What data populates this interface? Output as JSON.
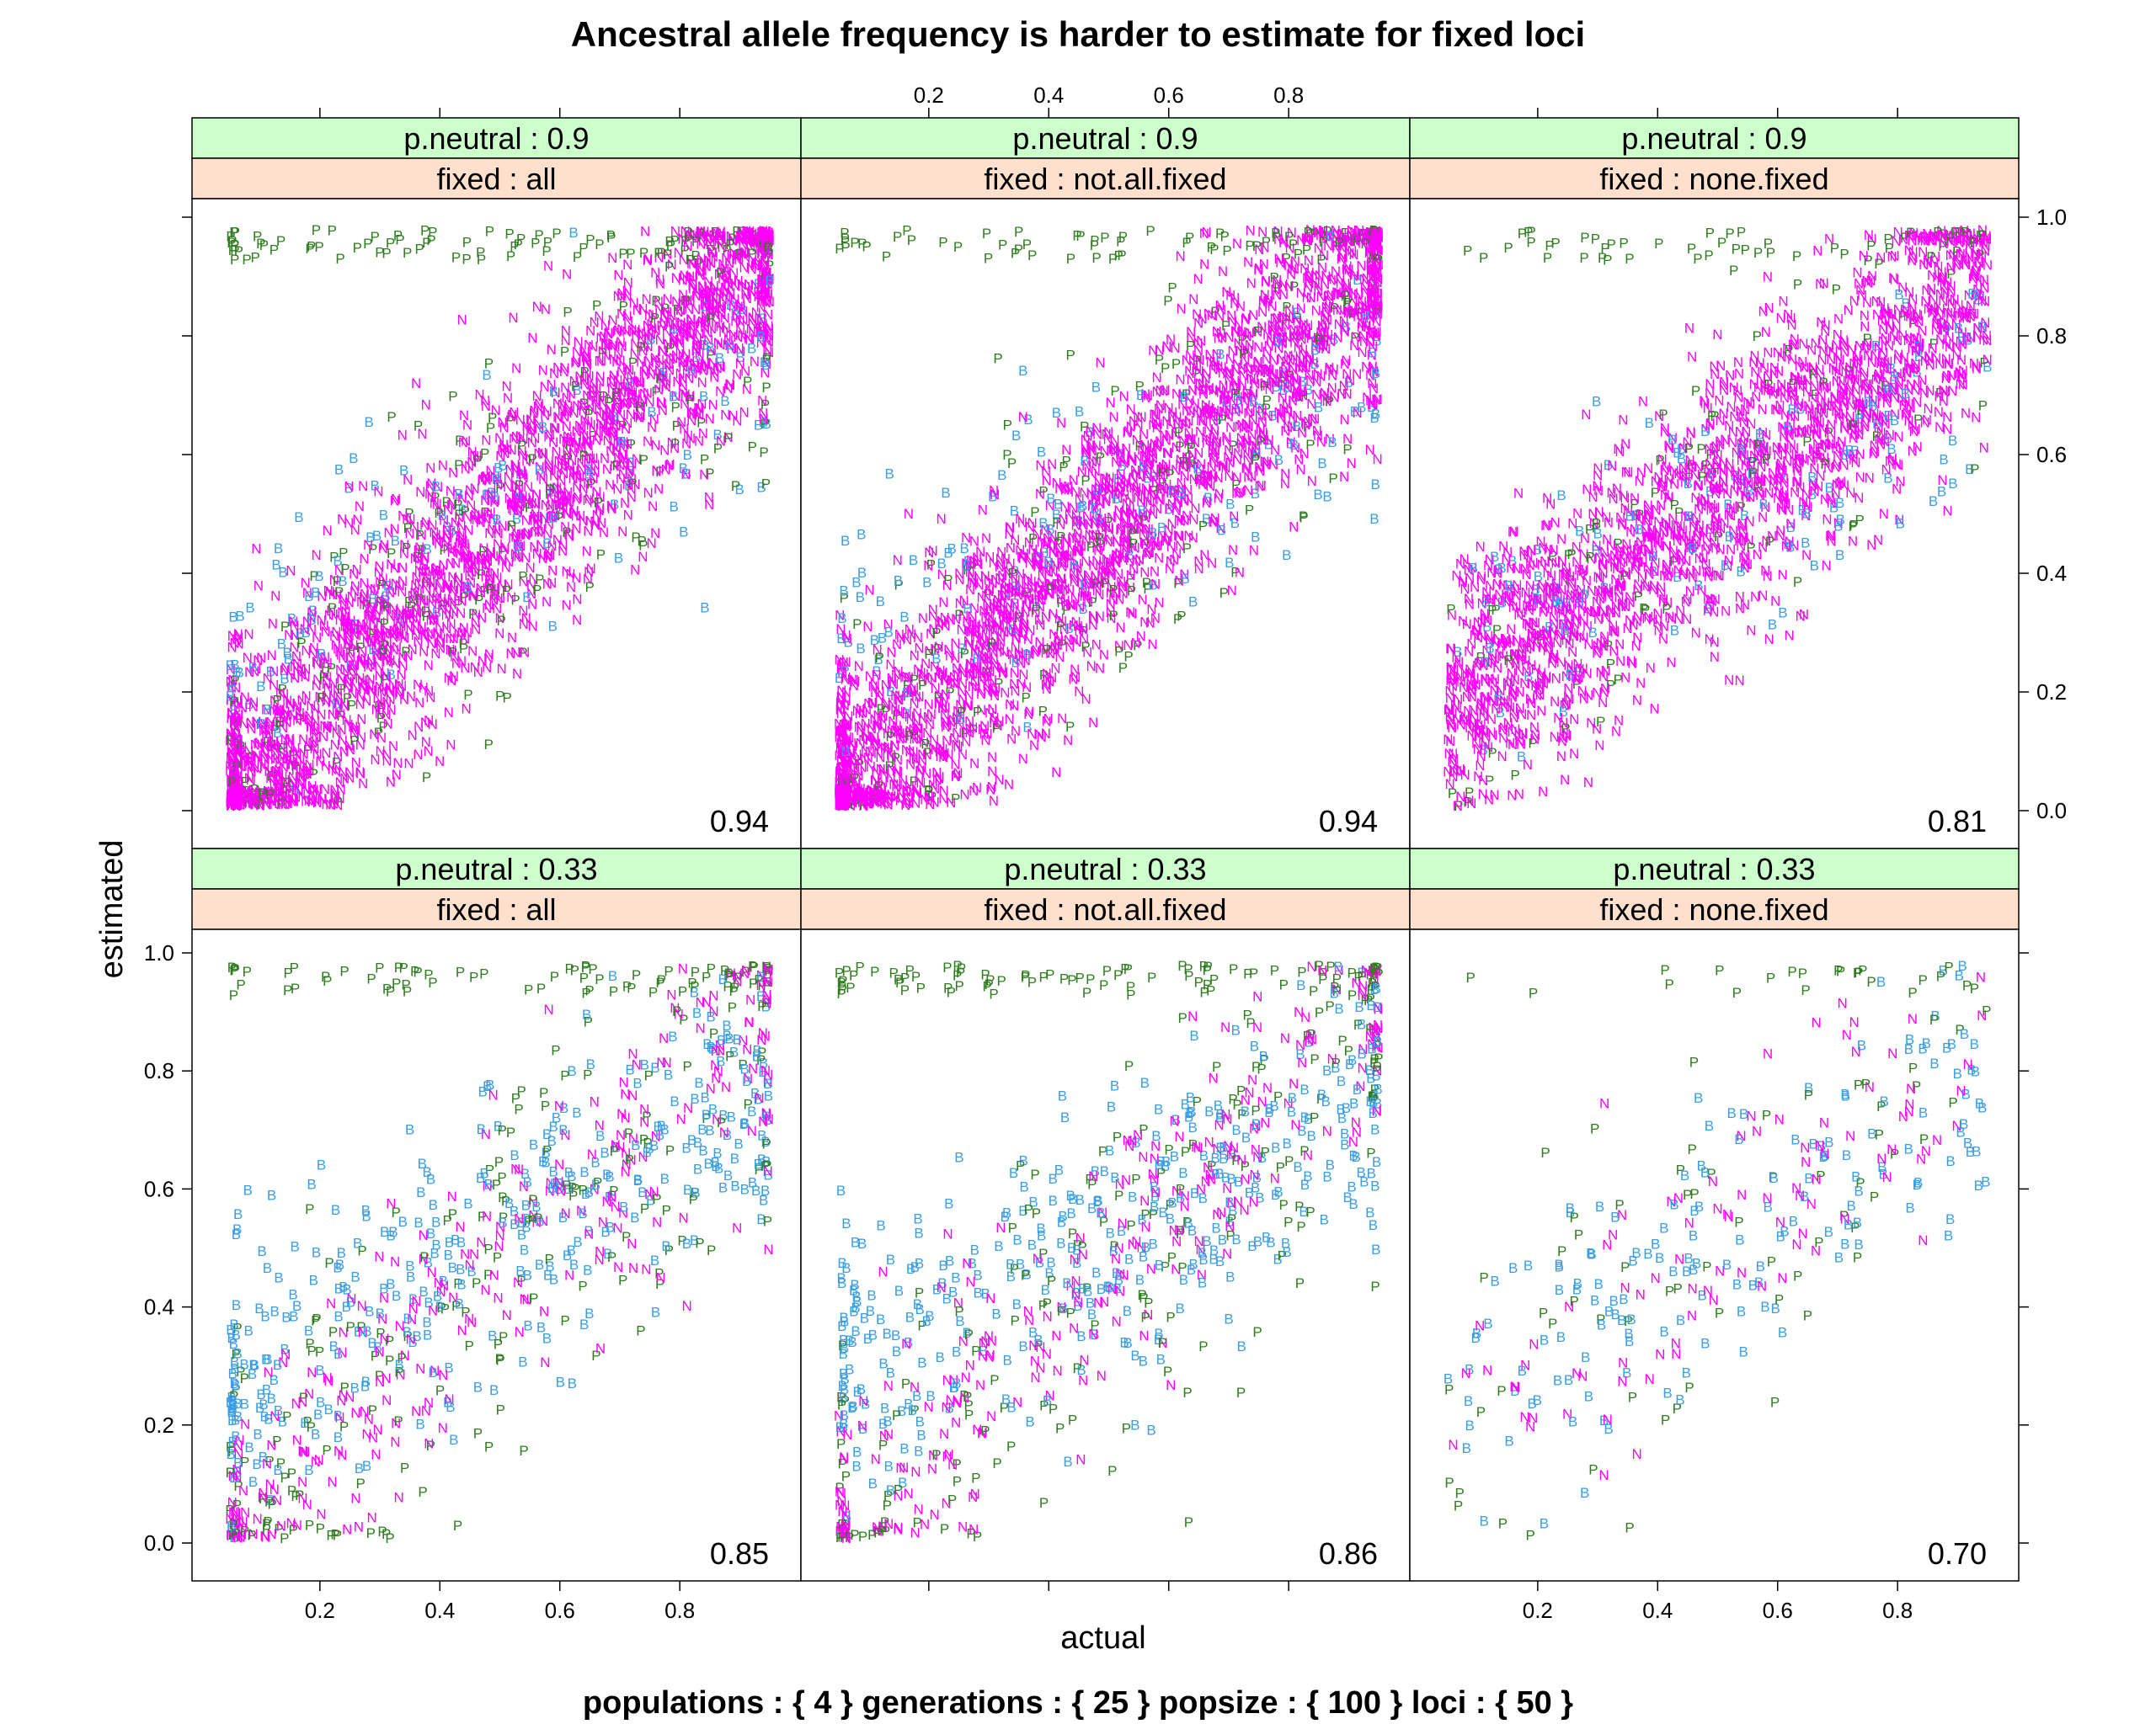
{
  "chart_data": {
    "type": "scatter",
    "title": "Ancestral allele frequency is harder to estimate for fixed loci",
    "xlabel": "actual",
    "ylabel": "estimated",
    "caption": "populations : { 4 } generations : { 25 } popsize : { 100 } loci : { 50 }",
    "xlim": [
      0.0,
      1.0
    ],
    "ylim": [
      -0.05,
      1.05
    ],
    "x_ticks": [
      0.2,
      0.4,
      0.6,
      0.8
    ],
    "x_tick_labels": [
      "0.2",
      "0.4",
      "0.6",
      "0.8"
    ],
    "y_ticks": [
      0.0,
      0.2,
      0.4,
      0.6,
      0.8,
      1.0
    ],
    "y_tick_labels": [
      "0.0",
      "0.2",
      "0.4",
      "0.6",
      "0.8",
      "1.0"
    ],
    "series": [
      {
        "name": "P",
        "symbol": "P",
        "color": "#2e7d1e"
      },
      {
        "name": "B",
        "symbol": "B",
        "color": "#3a9ee4"
      },
      {
        "name": "N",
        "symbol": "N",
        "color": "#ff00ff"
      }
    ],
    "panels": [
      {
        "p_neutral_label": "p.neutral : 0.9",
        "fixed_label": "fixed : all",
        "correlation": "0.94",
        "density": 1.0,
        "pb_mix": [
          0.12,
          0.06,
          0.82
        ],
        "spread": 0.11,
        "slope": 1.02,
        "intercept": -0.04,
        "bunch": true,
        "row": "top",
        "col": 0
      },
      {
        "p_neutral_label": "p.neutral : 0.9",
        "fixed_label": "fixed : not.all.fixed",
        "correlation": "0.94",
        "density": 1.0,
        "pb_mix": [
          0.1,
          0.06,
          0.84
        ],
        "spread": 0.11,
        "slope": 1.02,
        "intercept": -0.04,
        "bunch": true,
        "row": "top",
        "col": 1
      },
      {
        "p_neutral_label": "p.neutral : 0.9",
        "fixed_label": "fixed : none.fixed",
        "correlation": "0.81",
        "density": 0.75,
        "pb_mix": [
          0.08,
          0.07,
          0.85
        ],
        "spread": 0.11,
        "slope": 0.8,
        "intercept": 0.12,
        "bunch": false,
        "row": "top",
        "col": 2
      },
      {
        "p_neutral_label": "p.neutral : 0.33",
        "fixed_label": "fixed : all",
        "correlation": "0.85",
        "density": 0.34,
        "pb_mix": [
          0.3,
          0.4,
          0.3
        ],
        "spread": 0.13,
        "slope": 0.95,
        "intercept": -0.02,
        "bunch": true,
        "row": "bottom",
        "col": 0
      },
      {
        "p_neutral_label": "p.neutral : 0.33",
        "fixed_label": "fixed : not.all.fixed",
        "correlation": "0.86",
        "density": 0.34,
        "pb_mix": [
          0.3,
          0.4,
          0.3
        ],
        "spread": 0.13,
        "slope": 0.95,
        "intercept": -0.02,
        "bunch": true,
        "row": "bottom",
        "col": 1
      },
      {
        "p_neutral_label": "p.neutral : 0.33",
        "fixed_label": "fixed : none.fixed",
        "correlation": "0.70",
        "density": 0.13,
        "pb_mix": [
          0.25,
          0.45,
          0.3
        ],
        "spread": 0.13,
        "slope": 0.7,
        "intercept": 0.17,
        "bunch": false,
        "row": "bottom",
        "col": 2
      }
    ]
  }
}
